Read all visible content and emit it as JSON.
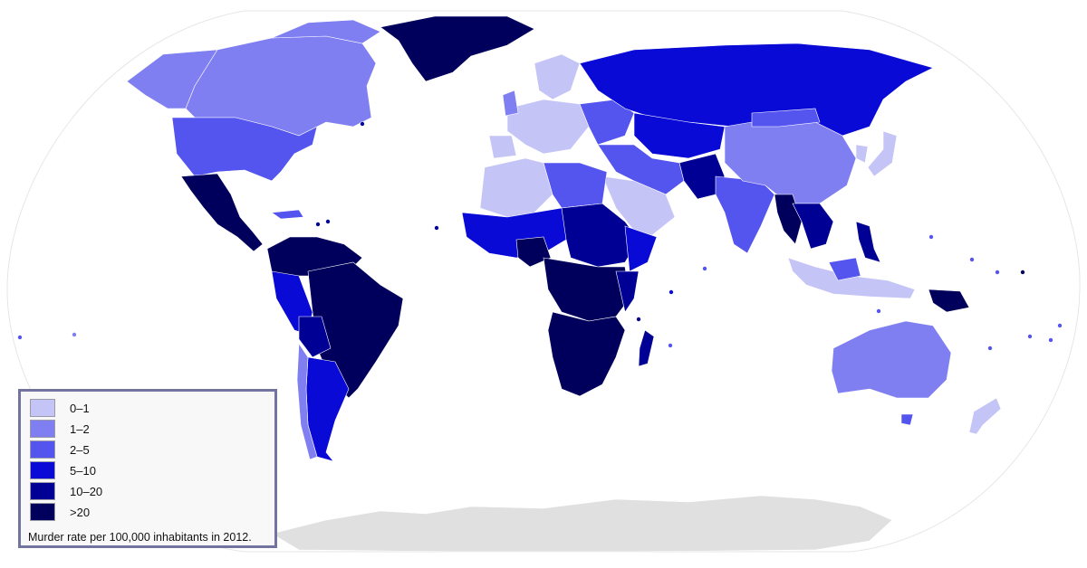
{
  "colors": {
    "c0_1": "#c4c4f6",
    "c1_2": "#7f7ff2",
    "c2_5": "#5454ef",
    "c5_10": "#0a0ad6",
    "c10_20": "#000094",
    "c20": "#00005c",
    "nodata": "#e0e0e0",
    "ocean": "#ffffff"
  },
  "legend": {
    "items": [
      {
        "label": "0–1",
        "color": "#c4c4f6"
      },
      {
        "label": "1–2",
        "color": "#7f7ff2"
      },
      {
        "label": "2–5",
        "color": "#5454ef"
      },
      {
        "label": "5–10",
        "color": "#0a0ad6"
      },
      {
        "label": "10–20",
        "color": "#000094"
      },
      {
        "label": ">20",
        "color": "#00005c"
      }
    ],
    "caption": "Murder rate per 100,000 inhabitants in 2012."
  }
}
